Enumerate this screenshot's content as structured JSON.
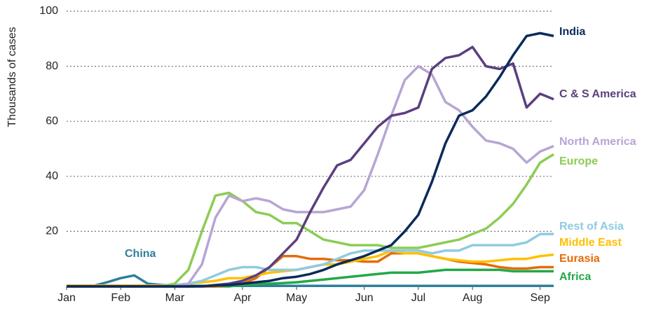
{
  "chart_data": {
    "type": "line",
    "y_label": "Thousands of cases",
    "categories": [
      "Jan",
      null,
      null,
      null,
      "Feb",
      null,
      null,
      null,
      "Mar",
      null,
      null,
      null,
      null,
      "Apr",
      null,
      null,
      null,
      "May",
      null,
      null,
      null,
      null,
      "Jun",
      null,
      null,
      null,
      "Jul",
      null,
      null,
      null,
      "Aug",
      null,
      null,
      null,
      null,
      "Sep",
      null
    ],
    "ylim": [
      0,
      100
    ],
    "yticks": [
      20,
      40,
      60,
      80,
      100
    ],
    "grid": true,
    "series": [
      {
        "name": "India",
        "color": "#0b2a5c",
        "values": [
          0,
          0,
          0,
          0,
          0,
          0,
          0,
          0,
          0,
          0,
          0.1,
          0.3,
          0.5,
          1,
          1.5,
          2,
          3,
          3.5,
          4.5,
          6,
          8,
          9.5,
          11,
          13,
          15,
          20,
          26,
          38,
          52,
          62,
          64,
          69,
          76,
          84,
          91,
          92,
          91
        ]
      },
      {
        "name": "C & S America",
        "color": "#5b3f7e",
        "values": [
          0,
          0,
          0,
          0,
          0,
          0,
          0,
          0,
          0,
          0,
          0,
          0.5,
          1,
          2,
          4,
          7,
          12,
          17,
          27,
          36,
          44,
          46,
          52,
          58,
          62,
          63,
          65,
          79,
          83,
          84,
          87,
          80,
          79,
          81,
          65,
          70,
          68
        ]
      },
      {
        "name": "North America",
        "color": "#b7a5d4",
        "values": [
          0,
          0,
          0,
          0,
          0,
          0,
          0,
          0,
          0,
          1,
          8,
          25,
          33,
          31,
          32,
          31,
          28,
          27,
          27,
          27,
          28,
          29,
          35,
          48,
          62,
          75,
          80,
          77,
          67,
          64,
          58,
          53,
          52,
          50,
          45,
          49,
          51
        ]
      },
      {
        "name": "Europe",
        "color": "#8ccc54",
        "values": [
          0,
          0,
          0,
          0,
          0,
          0,
          0,
          0,
          1,
          6,
          20,
          33,
          34,
          31,
          27,
          26,
          23,
          23,
          20,
          17,
          16,
          15,
          15,
          15,
          14,
          14,
          14,
          15,
          16,
          17,
          19,
          21,
          25,
          30,
          37,
          45,
          48
        ]
      },
      {
        "name": "Rest of Asia",
        "color": "#8fcbe0",
        "values": [
          0,
          0,
          0,
          0,
          0,
          0,
          0,
          0,
          0.5,
          1,
          2,
          4,
          6,
          7,
          7,
          6,
          6,
          6,
          7,
          8,
          10,
          12,
          13,
          13,
          13,
          13,
          13,
          12,
          13,
          13,
          15,
          15,
          15,
          15,
          16,
          19,
          19
        ]
      },
      {
        "name": "Middle East",
        "color": "#ffc000",
        "values": [
          0.3,
          0.3,
          0.3,
          0.3,
          0.3,
          0.3,
          0.3,
          0.3,
          0.3,
          1,
          1.5,
          2,
          3,
          3,
          4,
          5,
          5.5,
          6,
          7,
          8,
          8,
          9,
          10,
          11,
          13,
          12,
          12,
          11,
          10,
          9.5,
          9,
          9,
          9.5,
          10,
          10,
          11,
          11.5
        ]
      },
      {
        "name": "Eurasia",
        "color": "#e36c0a",
        "values": [
          0,
          0,
          0,
          0,
          0,
          0,
          0,
          0,
          0,
          0,
          0,
          0,
          0.5,
          1,
          3,
          7,
          11,
          11,
          10,
          10,
          9.5,
          9.5,
          9,
          9,
          12,
          12,
          12,
          11,
          10,
          9,
          8.5,
          8,
          7,
          6.5,
          6.5,
          7,
          7
        ]
      },
      {
        "name": "Africa",
        "color": "#22a84a",
        "values": [
          0,
          0,
          0,
          0,
          0,
          0,
          0,
          0,
          0,
          0,
          0,
          0,
          0,
          0.5,
          0.8,
          1,
          1.2,
          1.5,
          2,
          2.5,
          3,
          3.5,
          4,
          4.5,
          5,
          5,
          5,
          5.5,
          6,
          6,
          6,
          6,
          6,
          5.5,
          5.5,
          5.5,
          5.5
        ]
      },
      {
        "name": "China",
        "color": "#2e7f9a",
        "values": [
          0,
          0,
          0.2,
          1.5,
          3,
          4,
          1,
          0.5,
          0.2,
          0.2,
          0.2,
          0.2,
          0.2,
          0.2,
          0.2,
          0.2,
          0.2,
          0.2,
          0.2,
          0.2,
          0.2,
          0.2,
          0.2,
          0.2,
          0.2,
          0.2,
          0.2,
          0.2,
          0.2,
          0.2,
          0.2,
          0.2,
          0.2,
          0.2,
          0.2,
          0.2,
          0.2
        ]
      }
    ]
  }
}
